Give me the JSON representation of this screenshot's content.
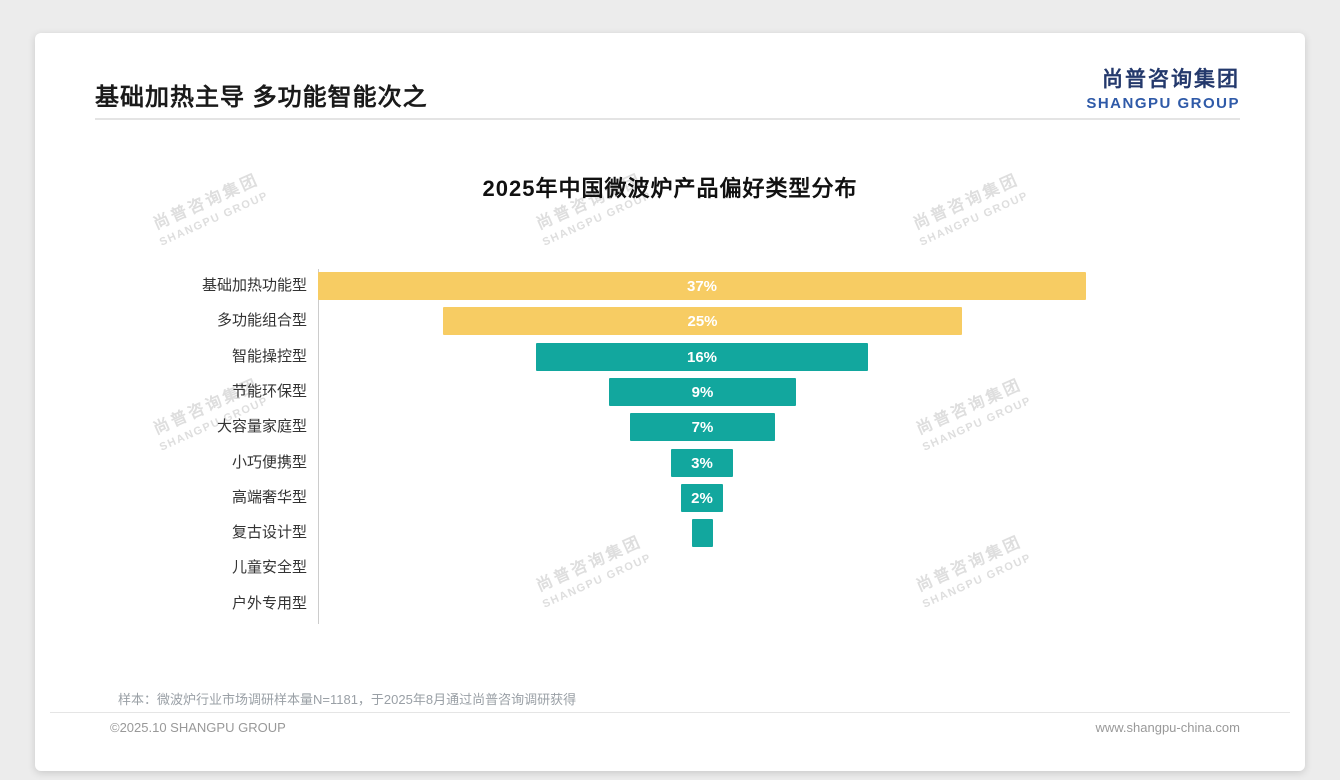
{
  "header": {
    "title": "基础加热主导 多功能智能次之",
    "logo_cn": "尚普咨询集团",
    "logo_en": "SHANGPU GROUP"
  },
  "watermark": {
    "cn": "尚普咨询集团",
    "en": "SHANGPU GROUP"
  },
  "chart_data": {
    "type": "bar",
    "orientation": "horizontal-centered-funnel",
    "title": "2025年中国微波炉产品偏好类型分布",
    "categories": [
      "基础加热功能型",
      "多功能组合型",
      "智能操控型",
      "节能环保型",
      "大容量家庭型",
      "小巧便携型",
      "高端奢华型",
      "复古设计型",
      "儿童安全型",
      "户外专用型"
    ],
    "values": [
      37,
      25,
      16,
      9,
      7,
      3,
      2,
      1,
      0,
      0
    ],
    "display_labels": [
      "37%",
      "25%",
      "16%",
      "9%",
      "7%",
      "3%",
      "2%",
      "",
      "",
      ""
    ],
    "colors": [
      "#F7CC63",
      "#F7CC63",
      "#12A79E",
      "#12A79E",
      "#12A79E",
      "#12A79E",
      "#12A79E",
      "#12A79E",
      "#12A79E",
      "#12A79E"
    ],
    "unit": "%",
    "xlim": [
      0,
      37
    ],
    "grid": false,
    "legend": "none"
  },
  "footnote": "样本：微波炉行业市场调研样本量N=1181，于2025年8月通过尚普咨询调研获得",
  "footer": {
    "left": "©2025.10 SHANGPU GROUP",
    "right": "www.shangpu-china.com"
  }
}
